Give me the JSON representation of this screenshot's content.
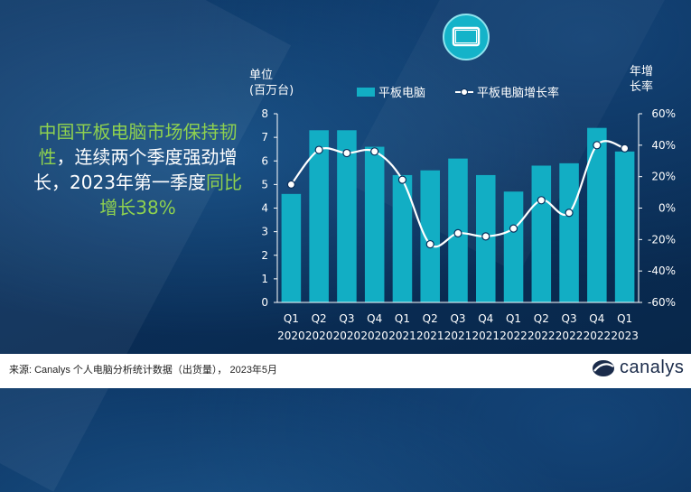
{
  "headline": {
    "green1": "中国平板电脑市场保持韧性",
    "white1": "，连续两个季度强劲增长，2023年第一季度",
    "green2": "同比增长38%"
  },
  "footer": {
    "source": "来源: Canalys 个人电脑分析统计数据（出货量）， 2023年5月",
    "logo": "canalys"
  },
  "icons": {
    "badge": "tablet-icon",
    "logo": "canalys-logo-icon"
  },
  "colors": {
    "bar": "#12aec4",
    "line": "#ffffff",
    "green": "#8fd14f",
    "badge": "#14b3c9"
  },
  "chart_data": {
    "type": "bar",
    "categories": [
      "Q1 2020",
      "Q2 2020",
      "Q3 2020",
      "Q4 2020",
      "Q1 2021",
      "Q2 2021",
      "Q3 2021",
      "Q4 2021",
      "Q1 2022",
      "Q2 2022",
      "Q3 2022",
      "Q4 2022",
      "Q1 2023"
    ],
    "x_quarters": [
      "Q1",
      "Q2",
      "Q3",
      "Q4",
      "Q1",
      "Q2",
      "Q3",
      "Q4",
      "Q1",
      "Q2",
      "Q3",
      "Q4",
      "Q1"
    ],
    "x_years": [
      "2020",
      "2020",
      "2020",
      "2020",
      "2021",
      "2021",
      "2021",
      "2021",
      "2022",
      "2022",
      "2022",
      "2022",
      "2023"
    ],
    "series": [
      {
        "name": "平板电脑",
        "type": "bar",
        "axis": "left",
        "values": [
          4.6,
          7.3,
          7.3,
          6.6,
          5.4,
          5.6,
          6.1,
          5.4,
          4.7,
          5.8,
          5.9,
          7.4,
          6.4
        ]
      },
      {
        "name": "平板电脑增长率",
        "type": "line",
        "axis": "right",
        "values": [
          15,
          37,
          35,
          36,
          18,
          -23,
          -16,
          -18,
          -13,
          5,
          -3,
          40,
          38
        ]
      }
    ],
    "ylabel_left_1": "单位",
    "ylabel_left_2": "(百万台)",
    "ylabel_right_1": "年增",
    "ylabel_right_2": "长率",
    "ylim_left": [
      0,
      8
    ],
    "ylim_right": [
      -60,
      60
    ],
    "left_ticks": [
      "0",
      "1",
      "2",
      "3",
      "4",
      "5",
      "6",
      "7",
      "8"
    ],
    "right_ticks": [
      "-60%",
      "-40%",
      "-20%",
      "0%",
      "20%",
      "40%",
      "60%"
    ],
    "legend_position": "top-center",
    "grid": false
  }
}
